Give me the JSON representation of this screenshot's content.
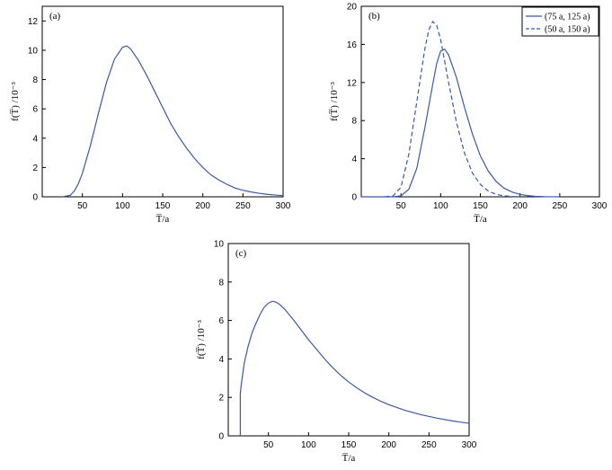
{
  "chart_data": [
    {
      "type": "line",
      "panel_label": "(a)",
      "xlabel": "T̅/a",
      "ylabel": "f(T̅) /10⁻³",
      "xlim": [
        0,
        300
      ],
      "ylim": [
        0,
        13
      ],
      "xticks": [
        50,
        100,
        150,
        200,
        250,
        300
      ],
      "yticks": [
        0,
        2,
        4,
        6,
        8,
        10,
        12
      ],
      "series": [
        {
          "color": "#3a5aa6",
          "dash": "solid",
          "x": [
            25,
            35,
            40,
            45,
            50,
            60,
            70,
            80,
            90,
            100,
            105,
            110,
            120,
            130,
            140,
            150,
            160,
            170,
            180,
            190,
            200,
            210,
            220,
            230,
            240,
            250,
            260,
            270,
            280,
            290,
            300
          ],
          "y": [
            0,
            0.1,
            0.4,
            0.9,
            1.6,
            3.5,
            5.7,
            7.8,
            9.4,
            10.2,
            10.3,
            10.1,
            9.3,
            8.3,
            7.2,
            6.1,
            5.0,
            4.1,
            3.3,
            2.6,
            2.0,
            1.5,
            1.15,
            0.85,
            0.6,
            0.45,
            0.33,
            0.24,
            0.17,
            0.12,
            0.08
          ]
        }
      ]
    },
    {
      "type": "line",
      "panel_label": "(b)",
      "xlabel": "T̅/a",
      "ylabel": "f(T̅) /10⁻³",
      "xlim": [
        0,
        300
      ],
      "ylim": [
        0,
        20
      ],
      "xticks": [
        50,
        100,
        150,
        200,
        250,
        300
      ],
      "yticks": [
        0,
        4,
        8,
        12,
        16,
        20
      ],
      "legend": "top-right",
      "series": [
        {
          "name": "(75 a, 125 a)",
          "color": "#3a5aa6",
          "dash": "solid",
          "x": [
            0,
            40,
            50,
            60,
            70,
            80,
            90,
            95,
            100,
            105,
            110,
            120,
            130,
            140,
            150,
            160,
            170,
            180,
            190,
            200,
            210,
            220,
            230,
            250
          ],
          "y": [
            0,
            0,
            0.1,
            0.8,
            3.0,
            7.2,
            11.8,
            14.0,
            15.3,
            15.5,
            14.9,
            12.5,
            9.4,
            6.6,
            4.3,
            2.7,
            1.6,
            0.9,
            0.5,
            0.25,
            0.12,
            0.05,
            0.02,
            0
          ]
        },
        {
          "name": "(50 a, 150 a)",
          "color": "#3a5aa6",
          "dash": "dashed",
          "x": [
            30,
            40,
            50,
            60,
            70,
            80,
            85,
            90,
            95,
            100,
            110,
            120,
            130,
            140,
            150,
            160,
            170,
            180,
            190,
            200
          ],
          "y": [
            0,
            0.1,
            1.0,
            4.5,
            10.0,
            15.5,
            17.5,
            18.4,
            18.0,
            16.5,
            12.0,
            7.8,
            4.6,
            2.5,
            1.3,
            0.6,
            0.25,
            0.1,
            0.04,
            0
          ]
        }
      ]
    },
    {
      "type": "line",
      "panel_label": "(c)",
      "xlabel": "T̅/a",
      "ylabel": "f(T̅) /10⁻³",
      "xlim": [
        0,
        300
      ],
      "ylim": [
        0,
        10
      ],
      "xticks": [
        50,
        100,
        150,
        200,
        250,
        300
      ],
      "yticks": [
        0,
        2,
        4,
        6,
        8,
        10
      ],
      "series": [
        {
          "color": "#3a5aa6",
          "dash": "solid",
          "x": [
            15,
            15,
            16,
            18,
            20,
            25,
            30,
            35,
            40,
            45,
            50,
            55,
            60,
            65,
            70,
            80,
            90,
            100,
            110,
            120,
            130,
            140,
            150,
            160,
            170,
            180,
            190,
            200,
            220,
            240,
            260,
            280,
            300
          ],
          "y": [
            0,
            2.2,
            2.6,
            3.2,
            3.8,
            4.7,
            5.4,
            5.9,
            6.35,
            6.7,
            6.9,
            7.0,
            6.95,
            6.8,
            6.6,
            6.1,
            5.55,
            5.0,
            4.5,
            4.0,
            3.55,
            3.15,
            2.8,
            2.5,
            2.23,
            2.0,
            1.8,
            1.62,
            1.33,
            1.1,
            0.92,
            0.77,
            0.65
          ]
        }
      ]
    }
  ]
}
